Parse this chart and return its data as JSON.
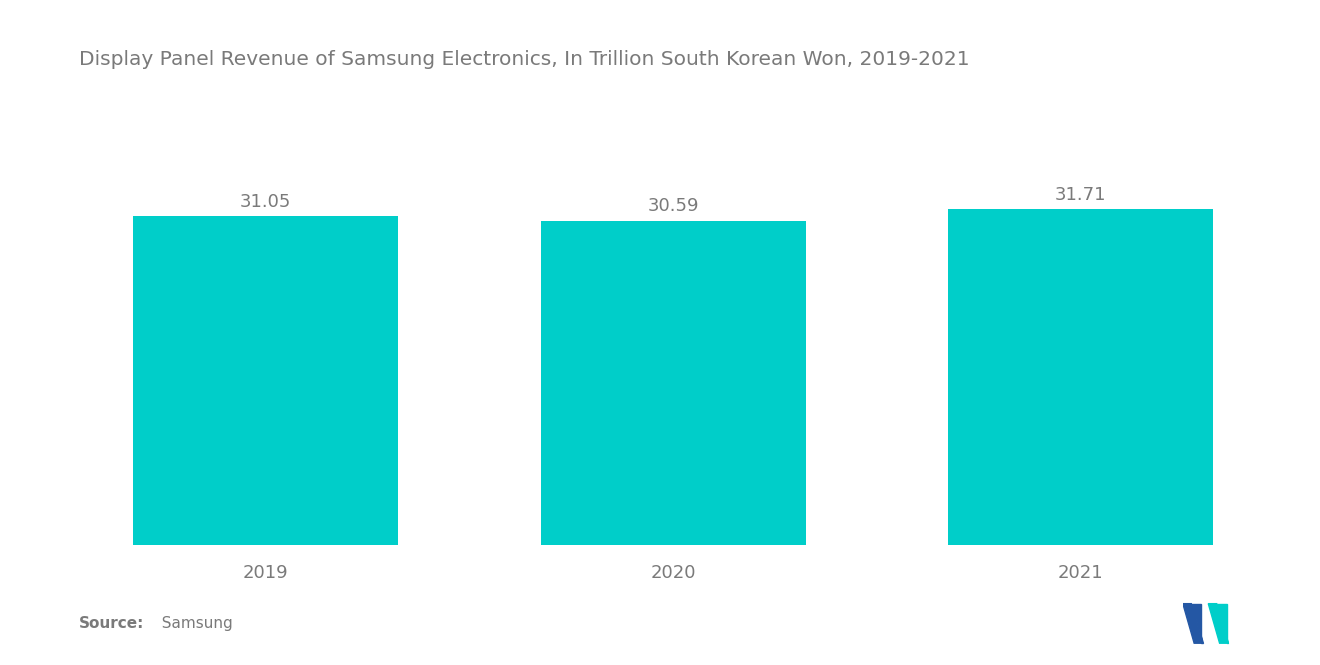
{
  "title": "Display Panel Revenue of Samsung Electronics, In Trillion South Korean Won, 2019-2021",
  "categories": [
    "2019",
    "2020",
    "2021"
  ],
  "values": [
    31.05,
    30.59,
    31.71
  ],
  "bar_color": "#00CEC9",
  "bar_width": 0.65,
  "value_labels": [
    "31.05",
    "30.59",
    "31.71"
  ],
  "ylim": [
    0,
    42
  ],
  "background_color": "#ffffff",
  "title_fontsize": 14.5,
  "label_fontsize": 13,
  "tick_fontsize": 13,
  "source_bold": "Source:",
  "source_normal": "  Samsung",
  "title_color": "#7a7a7a",
  "tick_color": "#7a7a7a",
  "value_label_color": "#7a7a7a",
  "source_color": "#7a7a7a",
  "logo_blue": "#2457A4",
  "logo_teal": "#00CEC9"
}
